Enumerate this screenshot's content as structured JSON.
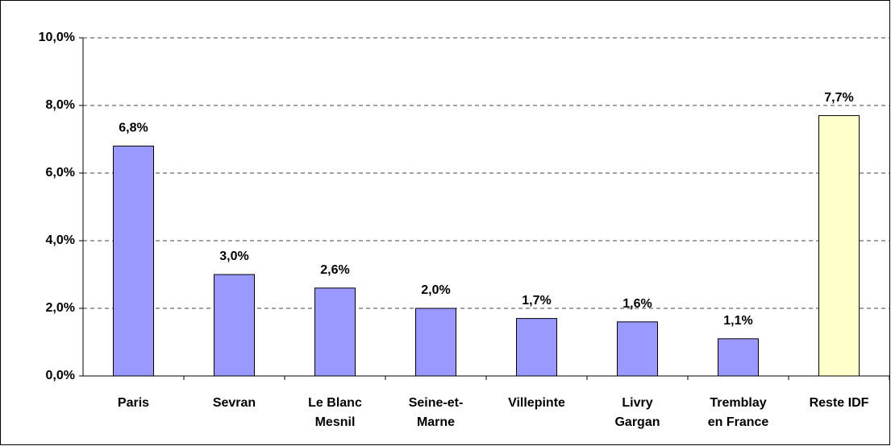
{
  "chart_data": {
    "type": "bar",
    "categories": [
      "Paris",
      "Sevran",
      "Le Blanc\nMesnil",
      "Seine-et-\nMarne",
      "Villepinte",
      "Livry\nGargan",
      "Tremblay\nen France",
      "Reste IDF"
    ],
    "values": [
      6.8,
      3.0,
      2.6,
      2.0,
      1.7,
      1.6,
      1.1,
      7.7
    ],
    "value_labels": [
      "6,8%",
      "3,0%",
      "2,6%",
      "2,0%",
      "1,7%",
      "1,6%",
      "1,1%",
      "7,7%"
    ],
    "colors": [
      "#9999ff",
      "#9999ff",
      "#9999ff",
      "#9999ff",
      "#9999ff",
      "#9999ff",
      "#9999ff",
      "#ffffcc"
    ],
    "ylim": [
      0,
      10
    ],
    "yticks": [
      {
        "value": 0,
        "label": "0,0%"
      },
      {
        "value": 2,
        "label": "2,0%"
      },
      {
        "value": 4,
        "label": "4,0%"
      },
      {
        "value": 6,
        "label": "6,0%"
      },
      {
        "value": 8,
        "label": "8,0%"
      },
      {
        "value": 10,
        "label": "10,0%"
      }
    ],
    "grid": true
  }
}
